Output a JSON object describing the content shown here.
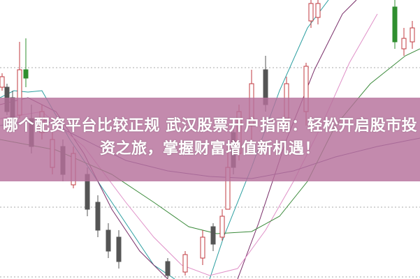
{
  "title": "哪个配资平台比较正规 武汉股票开户指南：轻松开启股市投资之旅，掌握财富增值新机遇！",
  "colors": {
    "banner": "#b6709b",
    "up_candle": "#c0393f",
    "down_candle": "#2f8f2f",
    "flat_candle": "#555555",
    "grid": "#aaaaaa"
  }
}
